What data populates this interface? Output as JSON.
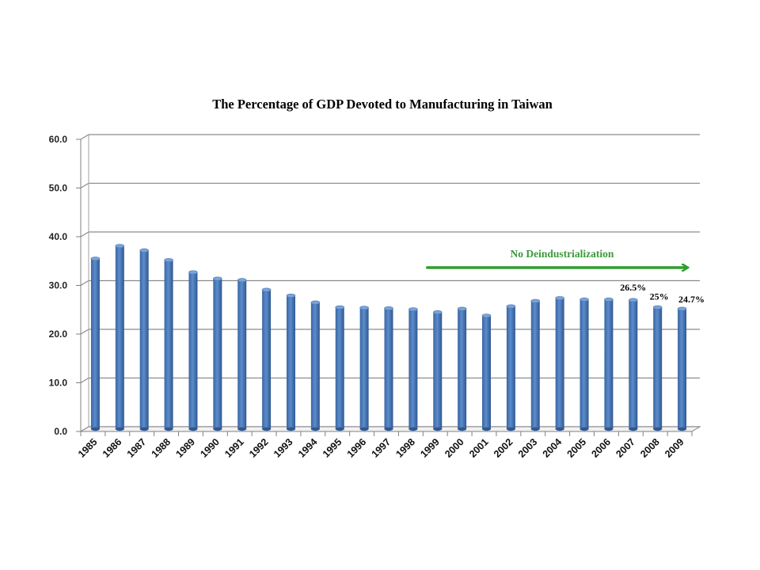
{
  "chart_data": {
    "type": "bar",
    "title": "The Percentage of GDP Devoted to Manufacturing in Taiwan",
    "xlabel": "",
    "ylabel": "",
    "ylim": [
      0,
      60
    ],
    "yticks": [
      "0.0",
      "10.0",
      "20.0",
      "30.0",
      "40.0",
      "50.0",
      "60.0"
    ],
    "grid": true,
    "legend": "none",
    "bar_color": "#4f81bd",
    "categories": [
      "1985",
      "1986",
      "1987",
      "1988",
      "1989",
      "1990",
      "1991",
      "1992",
      "1993",
      "1994",
      "1995",
      "1996",
      "1997",
      "1998",
      "1999",
      "2000",
      "2001",
      "2002",
      "2003",
      "2004",
      "2005",
      "2006",
      "2007",
      "2008",
      "2009"
    ],
    "values": [
      35.0,
      37.6,
      36.7,
      34.7,
      32.2,
      30.9,
      30.6,
      28.6,
      27.4,
      26.0,
      25.0,
      24.9,
      24.8,
      24.6,
      24.0,
      24.7,
      23.3,
      25.2,
      26.3,
      26.9,
      26.6,
      26.6,
      26.5,
      25.0,
      24.7
    ],
    "data_labels": [
      {
        "category": "2007",
        "text": "26.5%"
      },
      {
        "category": "2008",
        "text": "25%"
      },
      {
        "category": "2009",
        "text": "24.7%"
      }
    ],
    "annotation": {
      "text": "No Deindustrialization",
      "color": "#2e9e2e",
      "from_category": "1999",
      "to_category": "2009"
    }
  }
}
